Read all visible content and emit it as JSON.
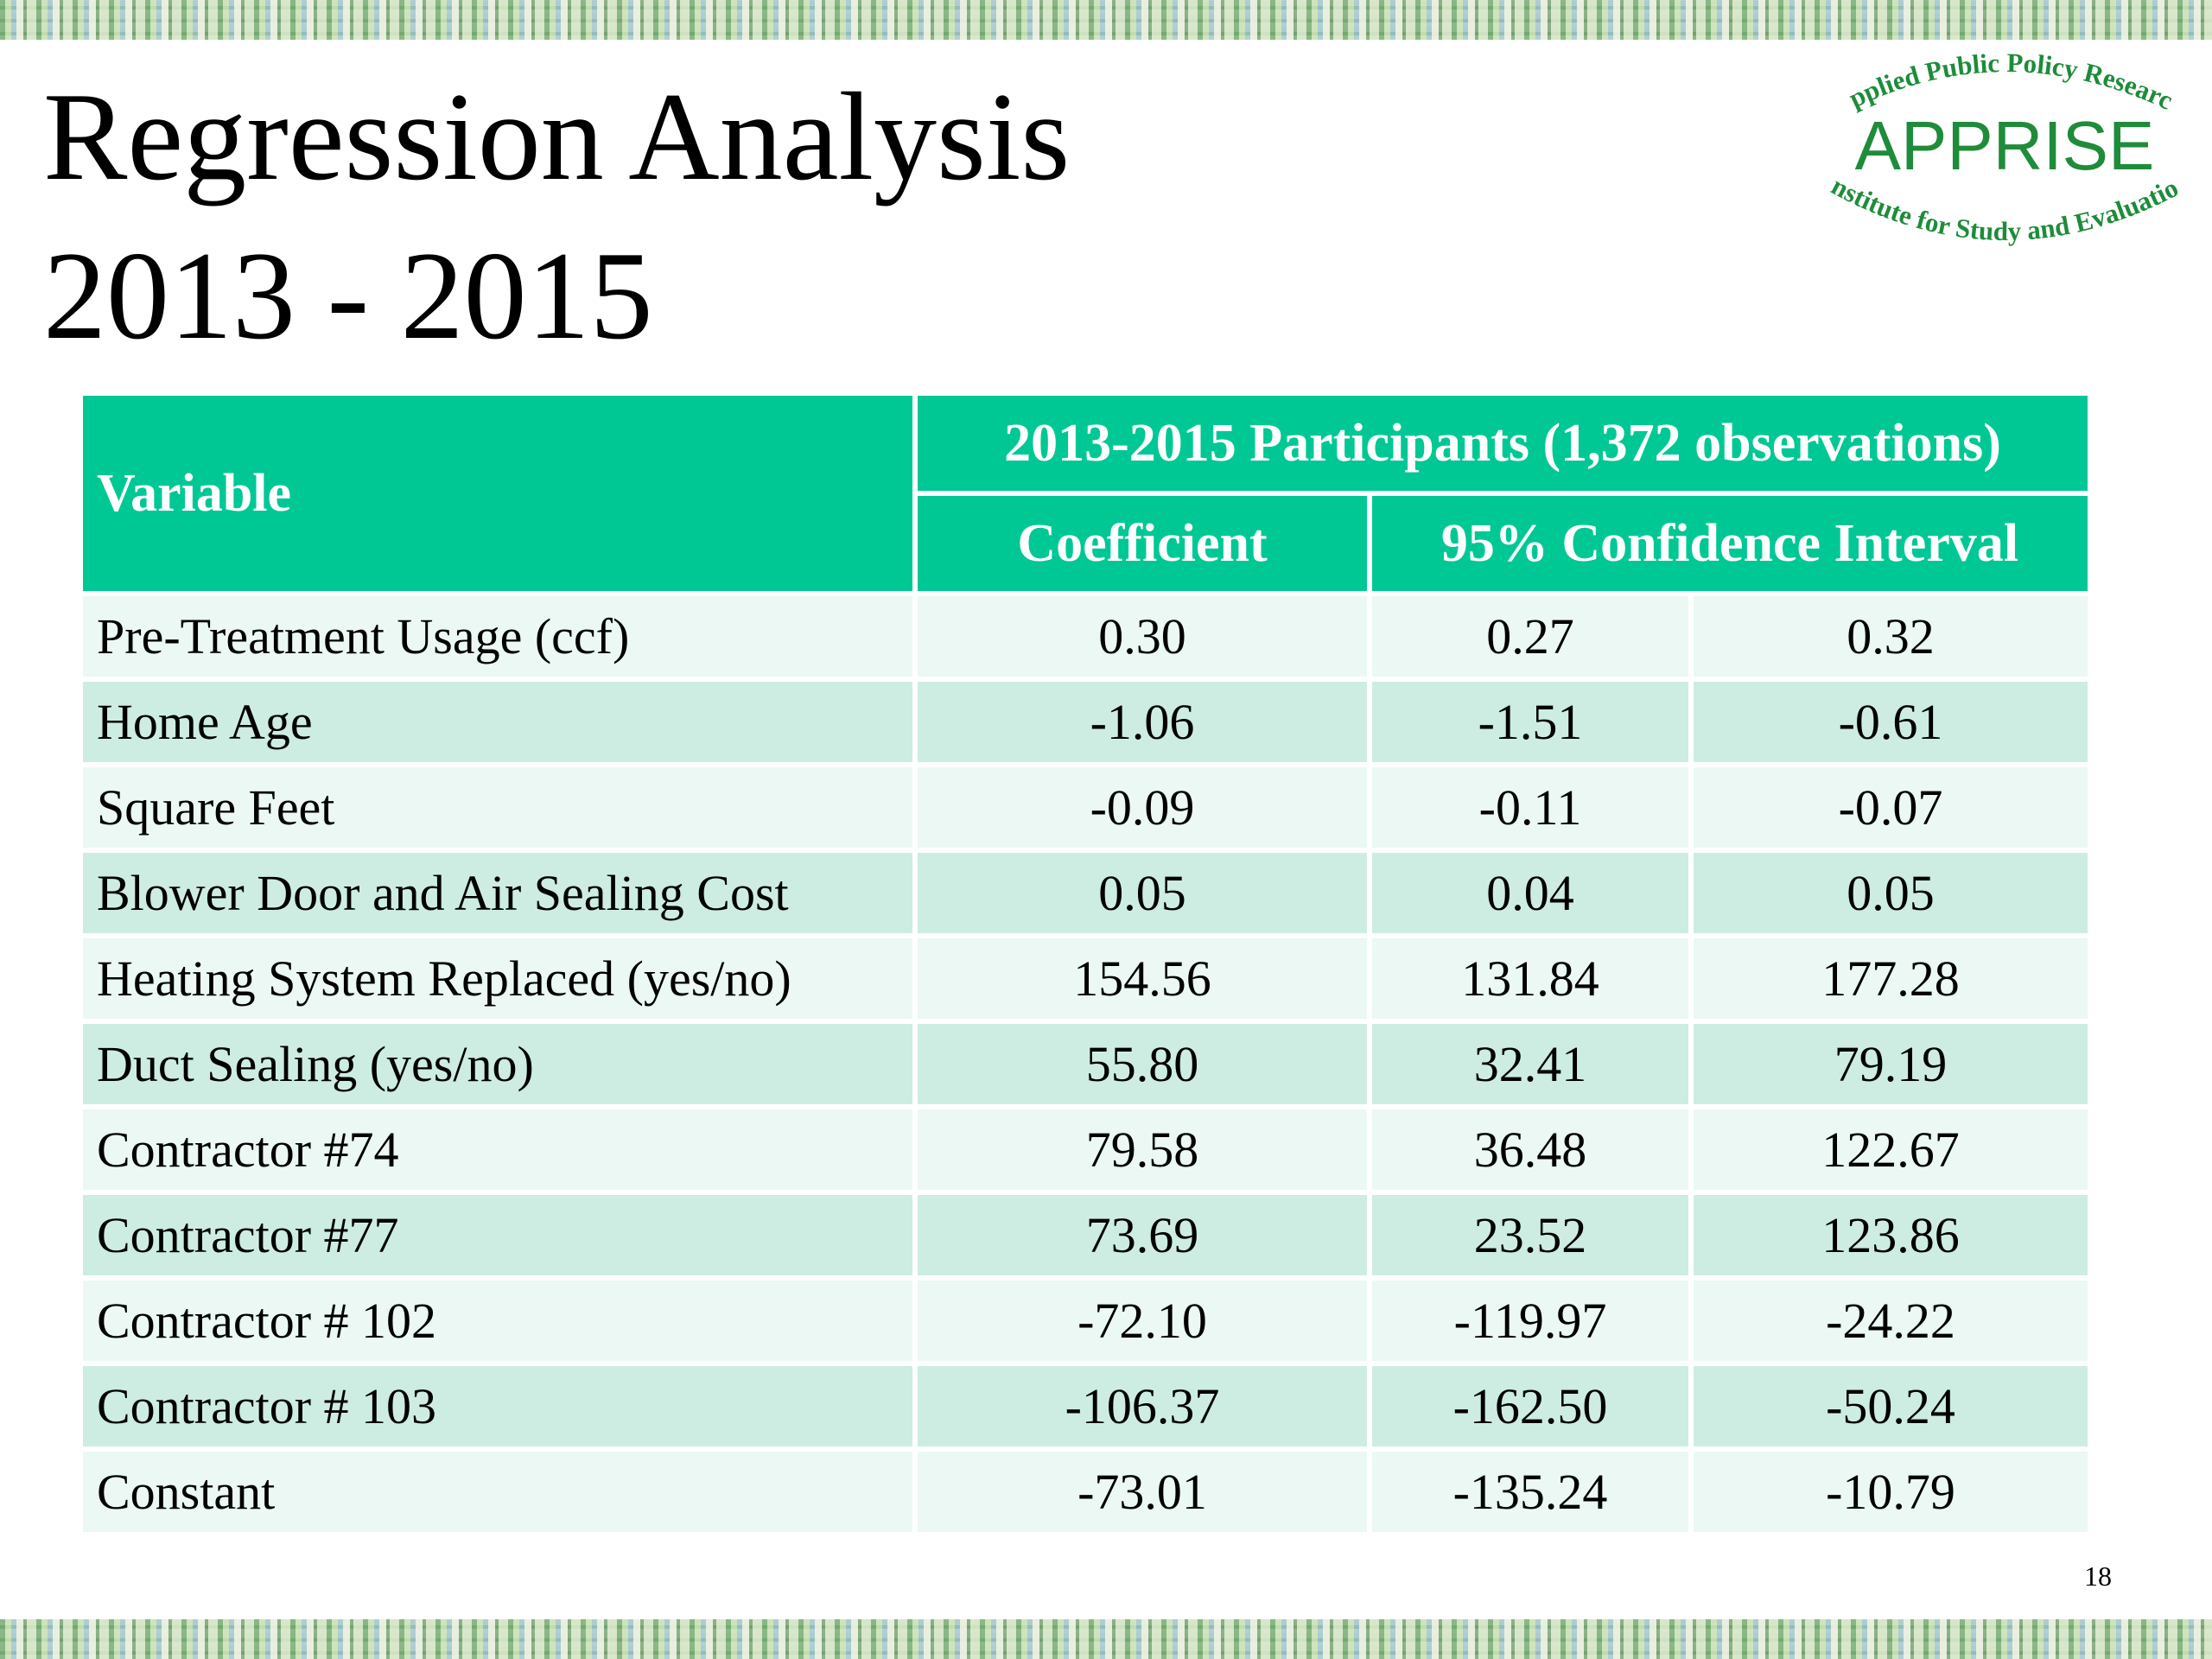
{
  "slide": {
    "title_line1": "Regression Analysis",
    "title_line2": "2013 - 2015",
    "page_number": "18"
  },
  "logo": {
    "top_text": "Applied Public Policy Research",
    "main_text": "APPRISE",
    "bottom_text": "Institute for Study and Evaluation",
    "color": "#1e8c3a"
  },
  "colors": {
    "header_bg": "#00c895",
    "row_light": "#ebf8f4",
    "row_dark": "#cdede2"
  },
  "table": {
    "variable_header": "Variable",
    "group_header": "2013-2015 Participants (1,372 observations)",
    "coefficient_header": "Coefficient",
    "ci_header": "95% Confidence Interval",
    "rows": [
      {
        "variable": "Pre-Treatment Usage (ccf)",
        "coefficient": "0.30",
        "ci_low": "0.27",
        "ci_high": "0.32"
      },
      {
        "variable": "Home Age",
        "coefficient": "-1.06",
        "ci_low": "-1.51",
        "ci_high": "-0.61"
      },
      {
        "variable": "Square Feet",
        "coefficient": "-0.09",
        "ci_low": "-0.11",
        "ci_high": "-0.07"
      },
      {
        "variable": "Blower Door and Air Sealing Cost",
        "coefficient": "0.05",
        "ci_low": "0.04",
        "ci_high": "0.05"
      },
      {
        "variable": "Heating System Replaced (yes/no)",
        "coefficient": "154.56",
        "ci_low": "131.84",
        "ci_high": "177.28"
      },
      {
        "variable": "Duct Sealing (yes/no)",
        "coefficient": "55.80",
        "ci_low": "32.41",
        "ci_high": "79.19"
      },
      {
        "variable": "Contractor #74",
        "coefficient": "79.58",
        "ci_low": "36.48",
        "ci_high": "122.67"
      },
      {
        "variable": "Contractor #77",
        "coefficient": "73.69",
        "ci_low": "23.52",
        "ci_high": "123.86"
      },
      {
        "variable": "Contractor # 102",
        "coefficient": "-72.10",
        "ci_low": "-119.97",
        "ci_high": "-24.22"
      },
      {
        "variable": "Contractor # 103",
        "coefficient": "-106.37",
        "ci_low": "-162.50",
        "ci_high": "-50.24"
      },
      {
        "variable": "Constant",
        "coefficient": "-73.01",
        "ci_low": "-135.24",
        "ci_high": "-10.79"
      }
    ]
  }
}
